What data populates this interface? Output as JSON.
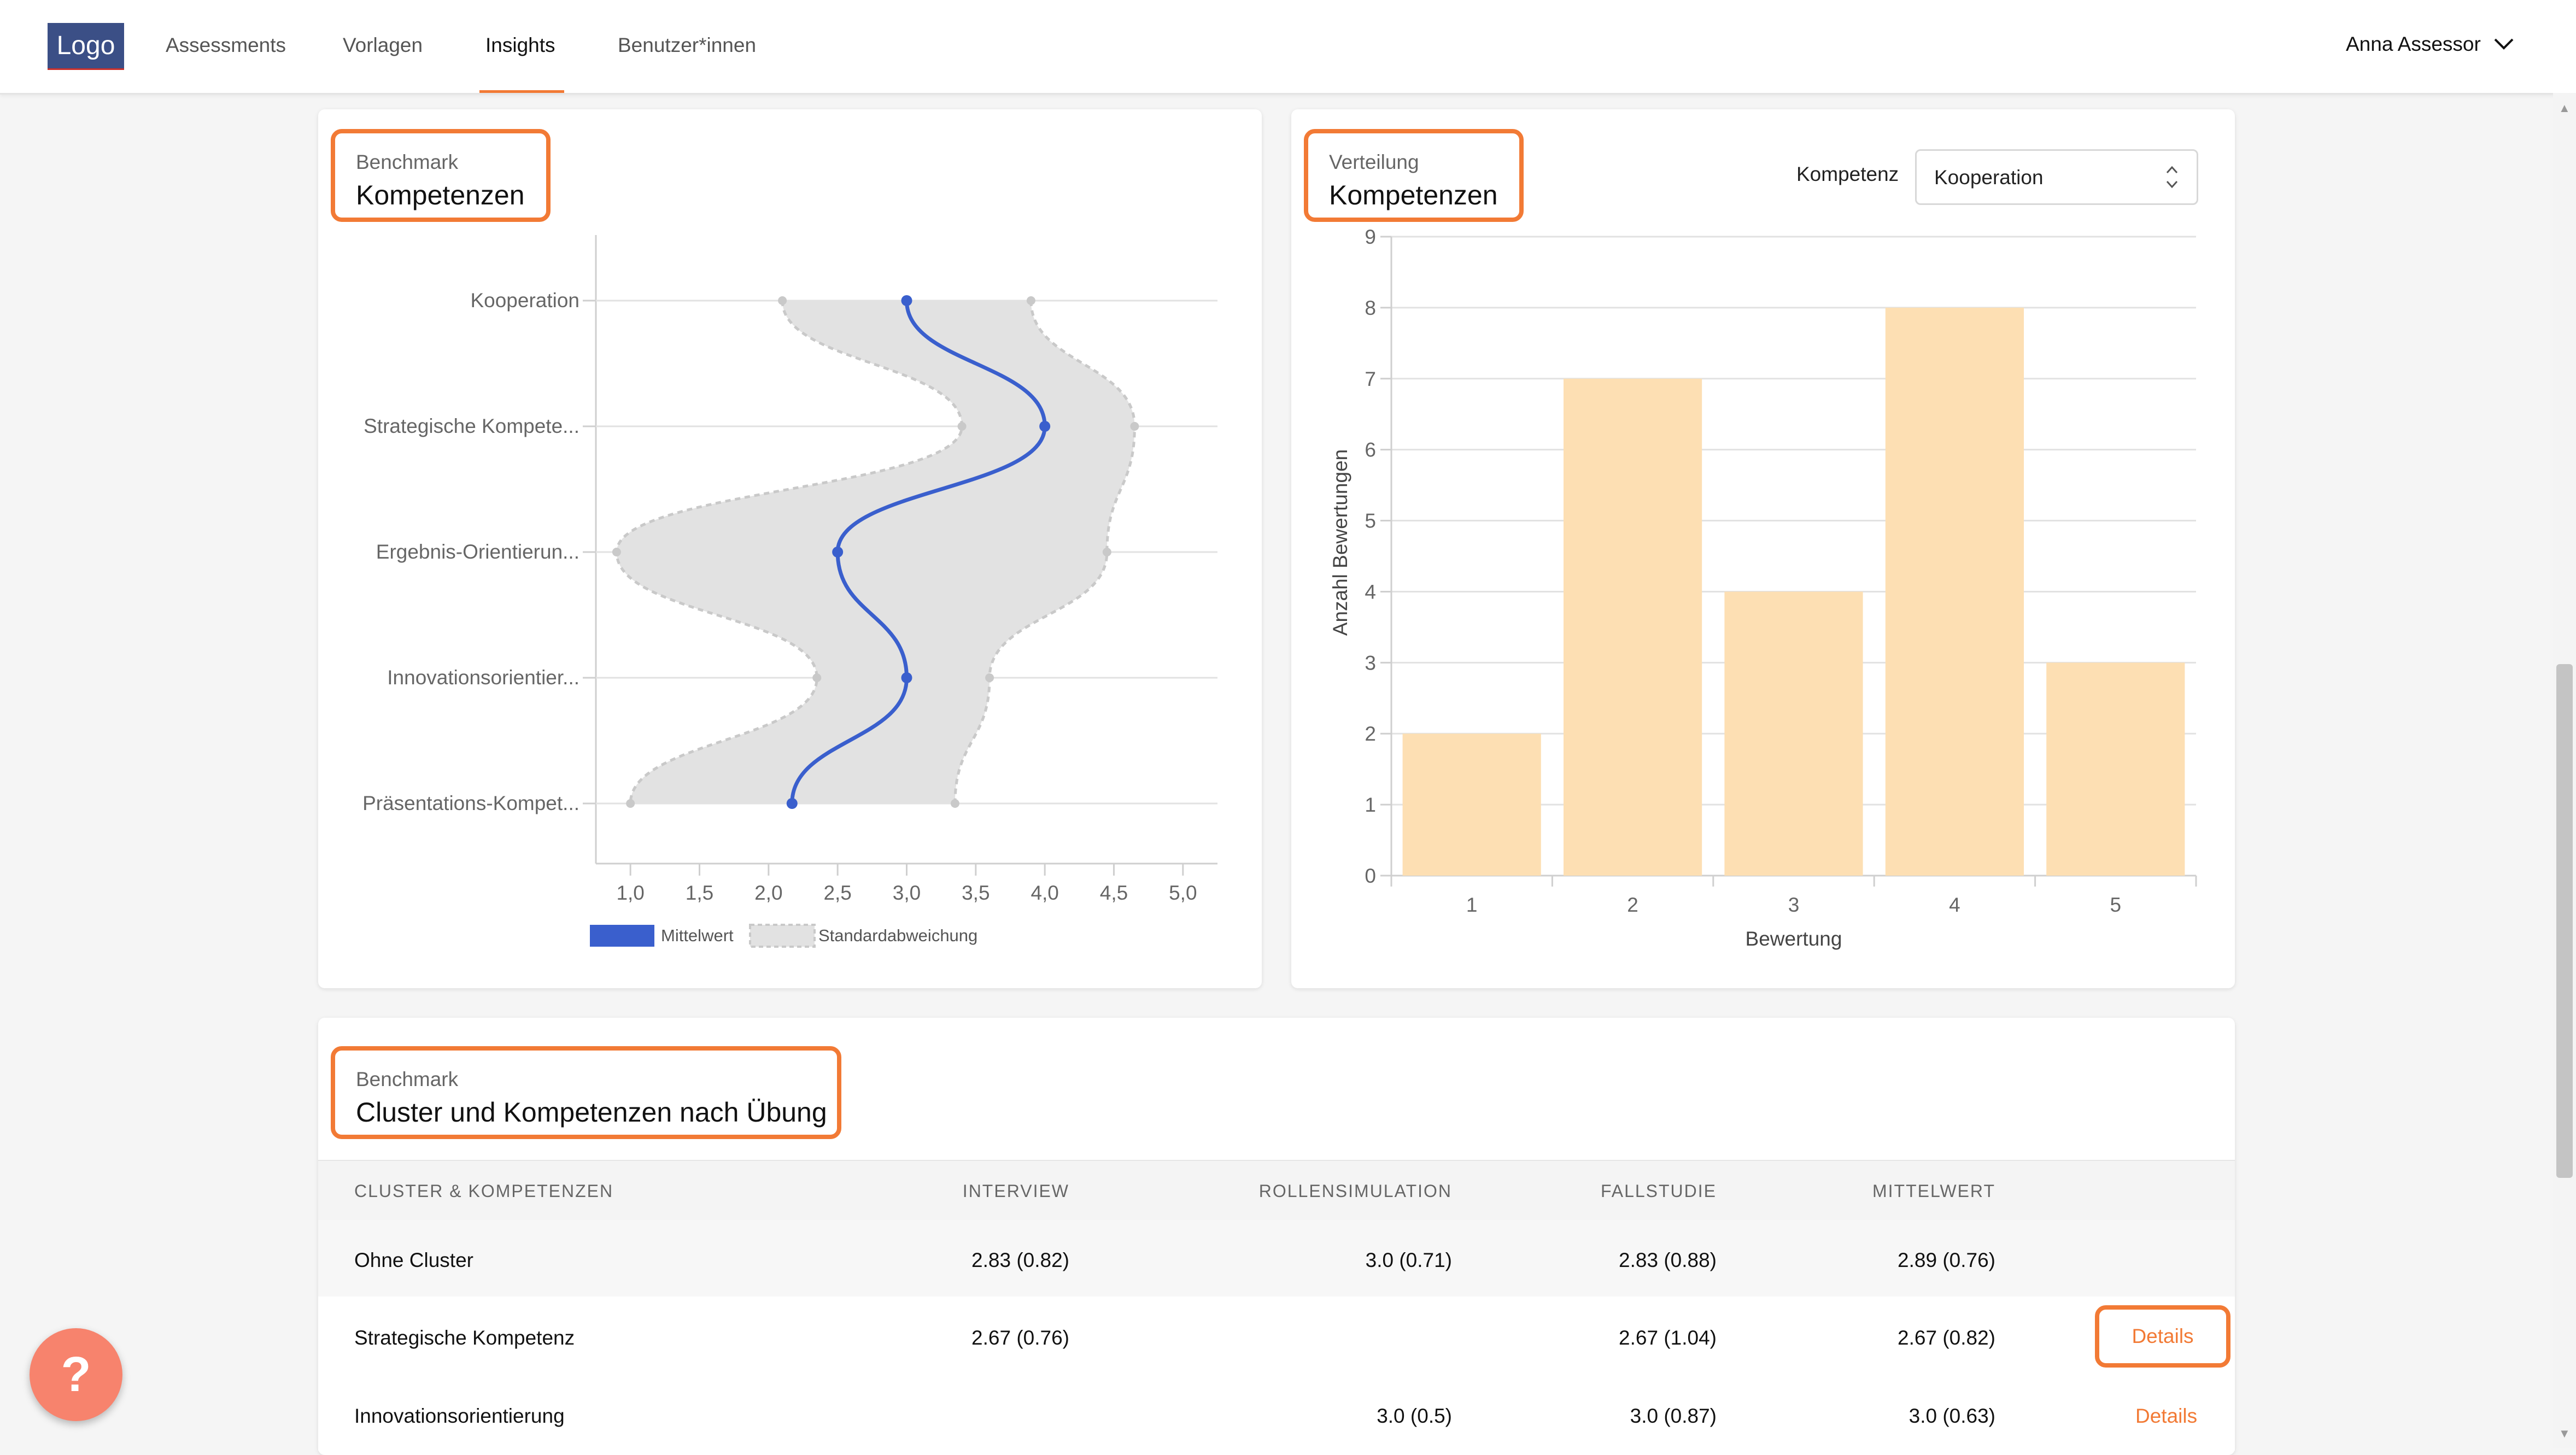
{
  "nav": {
    "logo": "Logo",
    "items": [
      {
        "label": "Assessments"
      },
      {
        "label": "Vorlagen"
      },
      {
        "label": "Insights",
        "active": true
      },
      {
        "label": "Benutzer*innen"
      }
    ],
    "user": "Anna Assessor",
    "user_icon": "chevron-down-icon"
  },
  "benchmark_chart": {
    "subtitle": "Benchmark",
    "title": "Kompetenzen"
  },
  "distribution_chart": {
    "subtitle": "Verteilung",
    "title": "Kompetenzen",
    "select_label": "Kompetenz",
    "select_value": "Kooperation"
  },
  "chart_data": [
    {
      "type": "line",
      "orientation": "horizontal",
      "categories": [
        "Kooperation",
        "Strategische Kompete...",
        "Ergebnis-Orientierun...",
        "Innovationsorientier...",
        "Präsentations-Kompet..."
      ],
      "series": [
        {
          "name": "Mittelwert",
          "values": [
            3.0,
            4.0,
            2.5,
            3.0,
            2.17
          ],
          "color": "#3a5fcd"
        },
        {
          "name": "Standardabweichung",
          "lower": [
            2.1,
            3.4,
            0.9,
            2.35,
            1.0
          ],
          "upper": [
            3.9,
            4.65,
            4.45,
            3.6,
            3.35
          ],
          "color": "#e2e2e2"
        }
      ],
      "x_ticks": [
        "1,0",
        "1,5",
        "2,0",
        "2,5",
        "3,0",
        "3,5",
        "4,0",
        "4,5",
        "5,0"
      ],
      "xlim": [
        0.75,
        5.25
      ],
      "legend": "bottom",
      "grid": true
    },
    {
      "type": "bar",
      "categories": [
        "1",
        "2",
        "3",
        "4",
        "5"
      ],
      "values": [
        2,
        7,
        4,
        8,
        3
      ],
      "xlabel": "Bewertung",
      "ylabel": "Anzahl Bewertungen",
      "ylim": [
        0,
        9
      ],
      "y_ticks": [
        "0",
        "1",
        "2",
        "3",
        "4",
        "5",
        "6",
        "7",
        "8",
        "9"
      ],
      "bar_color": "#fddfb3",
      "grid": true
    }
  ],
  "table_section": {
    "subtitle": "Benchmark",
    "title": "Cluster und Kompetenzen nach Übung",
    "headers": [
      "CLUSTER & KOMPETENZEN",
      "INTERVIEW",
      "ROLLENSIMULATION",
      "FALLSTUDIE",
      "MITTELWERT"
    ],
    "rows": [
      {
        "name": "Ohne Cluster",
        "interview": "2.83 (0.82)",
        "rollensimulation": "3.0 (0.71)",
        "fallstudie": "2.83 (0.88)",
        "mittelwert": "2.89 (0.76)",
        "link": ""
      },
      {
        "name": "Strategische Kompetenz",
        "interview": "2.67 (0.76)",
        "rollensimulation": "",
        "fallstudie": "2.67 (1.04)",
        "mittelwert": "2.67 (0.82)",
        "link": "Details"
      },
      {
        "name": "Innovationsorientierung",
        "interview": "",
        "rollensimulation": "3.0 (0.5)",
        "fallstudie": "3.0 (0.87)",
        "mittelwert": "3.0 (0.63)",
        "link": "Details"
      }
    ]
  },
  "help_button": "?",
  "accent_color": "#f27a35"
}
